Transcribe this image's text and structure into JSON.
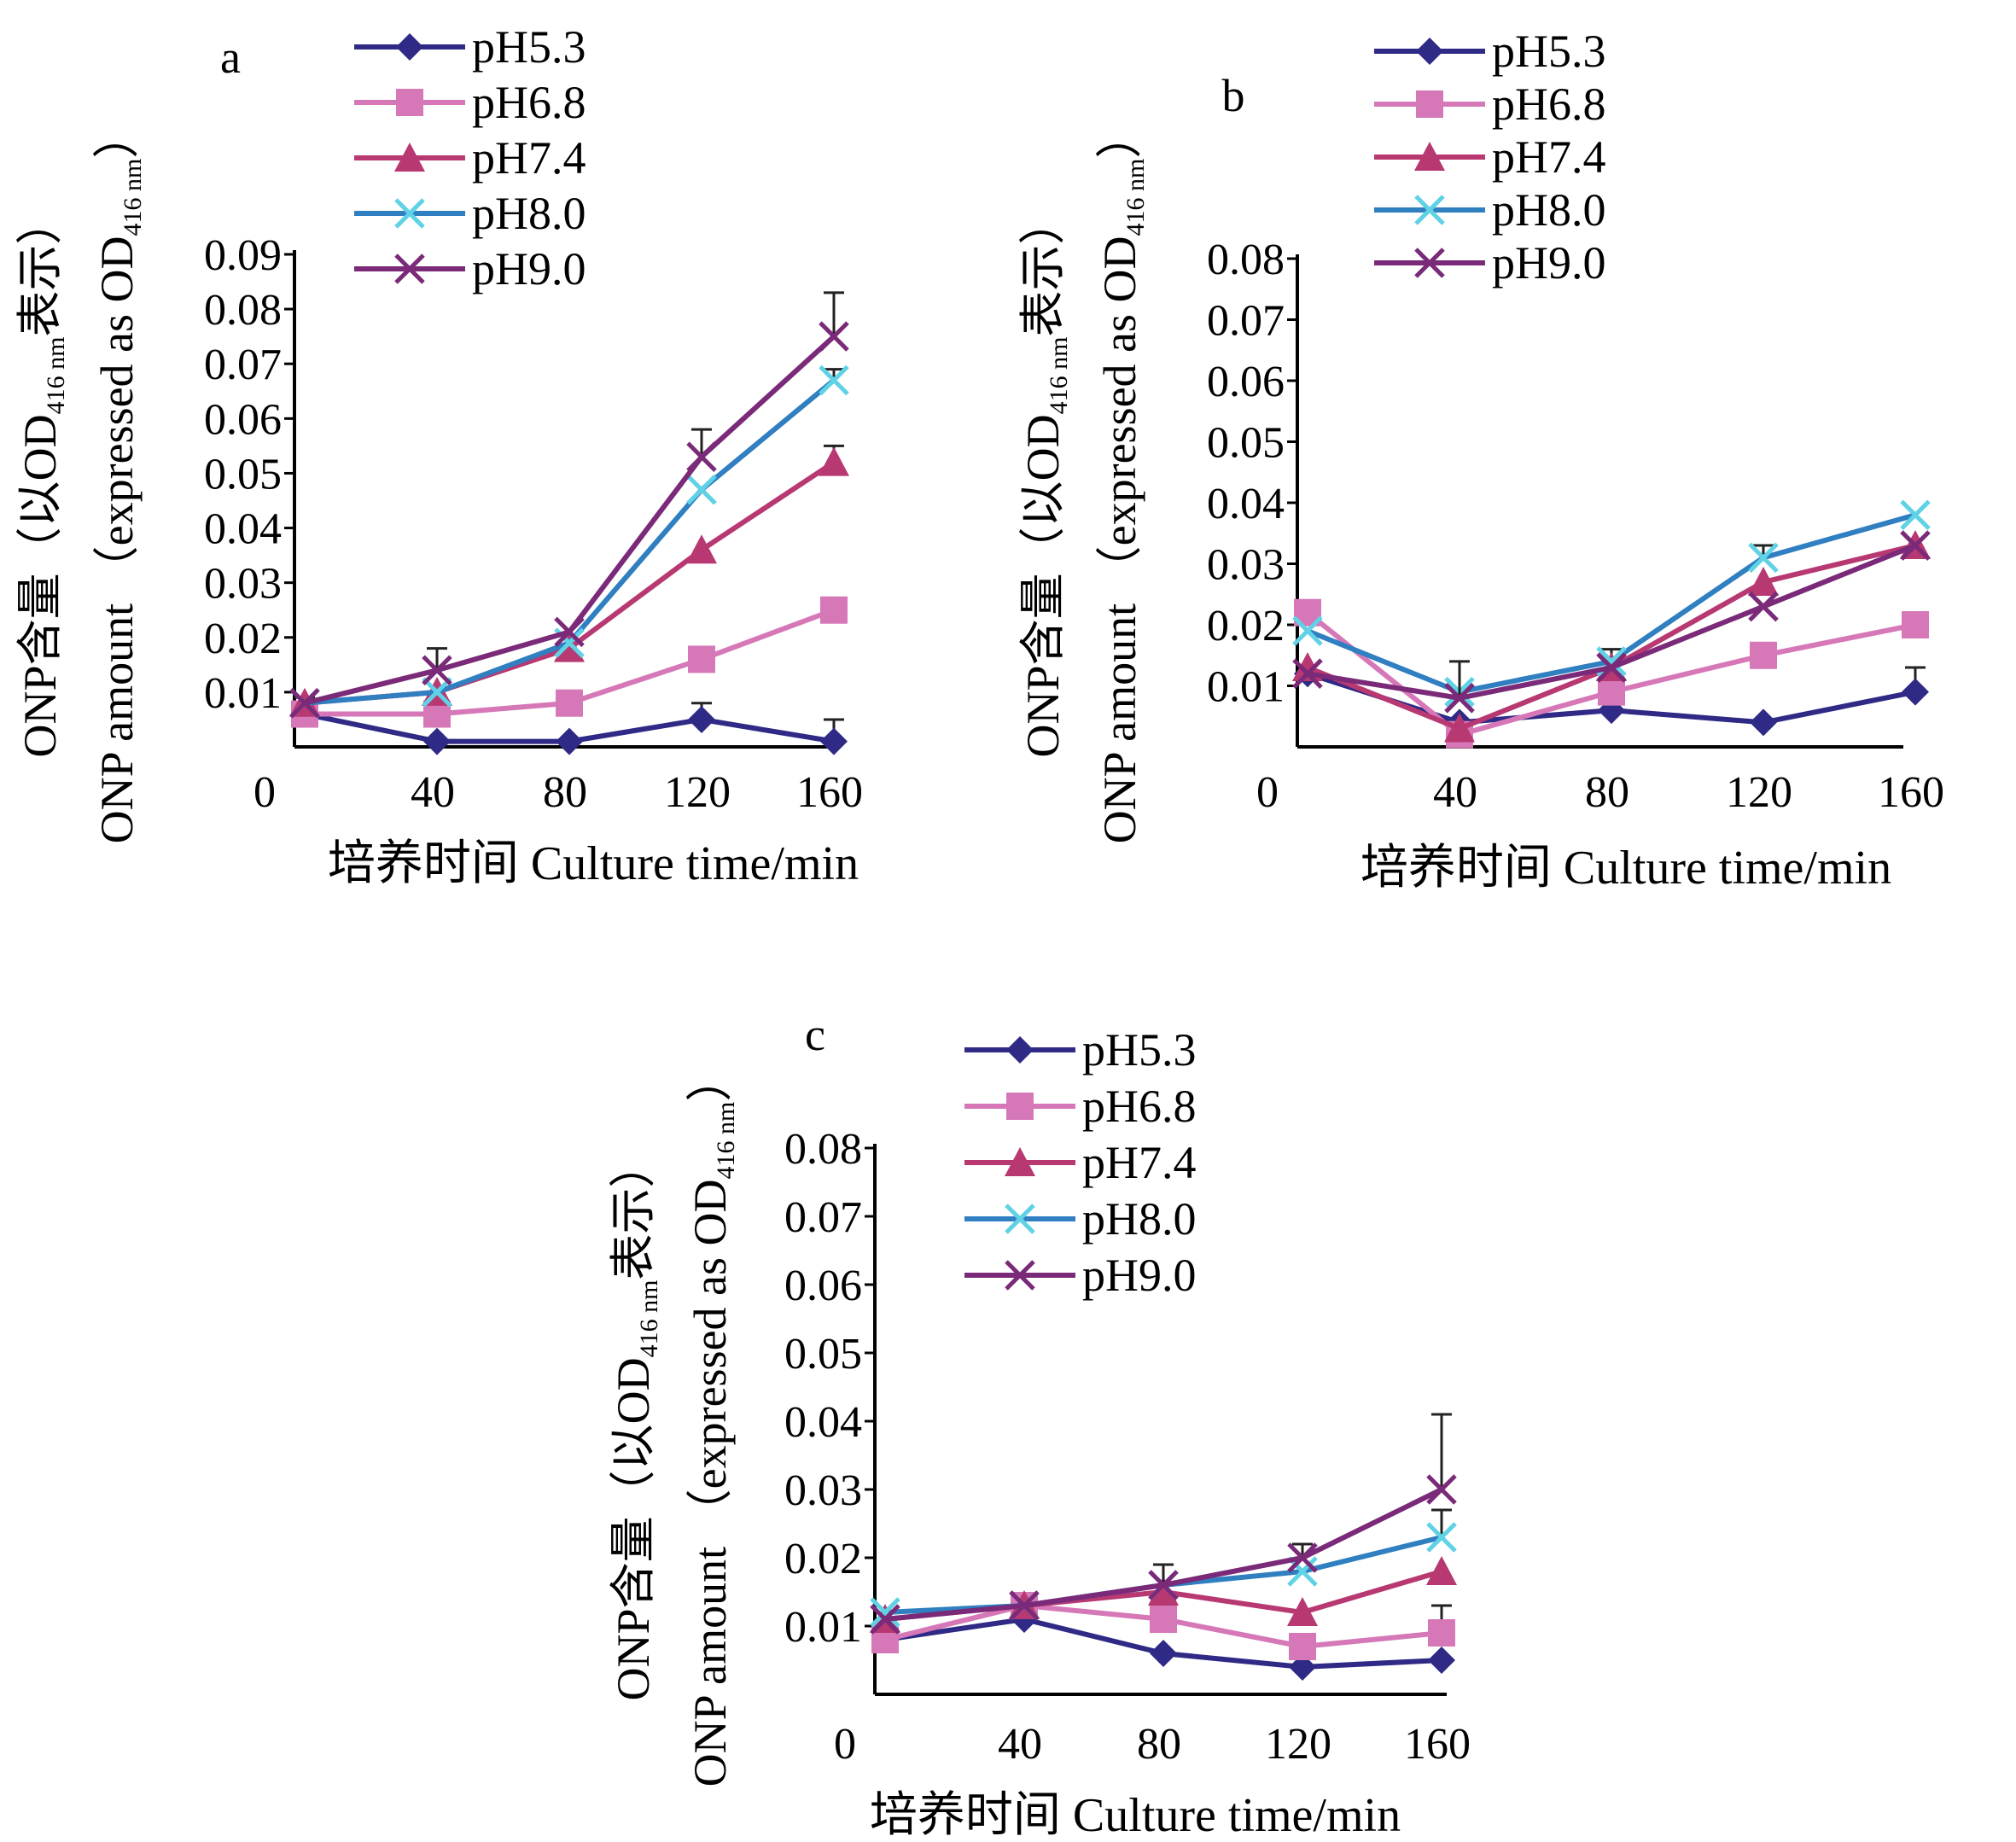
{
  "figure": {
    "y_label_cn": "ONP含量（以OD",
    "y_label_cn_sub": "416 nm",
    "y_label_cn_end": "表示）",
    "y_label_en": "ONP amount （expressed as OD",
    "y_label_en_sub": "416 nm",
    "y_label_en_end": "）",
    "x_label": "培养时间 Culture time/min"
  },
  "series_colors": {
    "pH5.3": "#2e2a85",
    "pH6.8": "#d678b8",
    "pH7.4": "#b83872",
    "pH8.0": "#2f7fc1",
    "pH9.0": "#7a2a78"
  },
  "series_markers": {
    "pH5.3": "diamond",
    "pH6.8": "square",
    "pH7.4": "triangle",
    "pH8.0": "star-x",
    "pH9.0": "x"
  },
  "chart_data": [
    {
      "type": "line",
      "panel_label": "a",
      "x": [
        0,
        40,
        80,
        120,
        160
      ],
      "x_ticks": [
        "0",
        "40",
        "80",
        "120",
        "160"
      ],
      "y_ticks": [
        "0.01",
        "0.02",
        "0.03",
        "0.04",
        "0.05",
        "0.06",
        "0.07",
        "0.08",
        "0.09"
      ],
      "ylim": [
        0,
        0.09
      ],
      "xlabel": "培养时间 Culture time/min",
      "legend_position": "top-left",
      "series": [
        {
          "name": "pH5.3",
          "values": [
            0.006,
            0.001,
            0.001,
            0.005,
            0.001
          ],
          "errors": [
            0.003,
            0.0,
            0.0,
            0.003,
            0.004
          ]
        },
        {
          "name": "pH6.8",
          "values": [
            0.006,
            0.006,
            0.008,
            0.016,
            0.025
          ],
          "errors": [
            0.0,
            0.0,
            0.0,
            0.0,
            0.0
          ]
        },
        {
          "name": "pH7.4",
          "values": [
            0.008,
            0.01,
            0.018,
            0.036,
            0.052
          ],
          "errors": [
            0.0,
            0.0,
            0.0,
            0.0,
            0.003
          ]
        },
        {
          "name": "pH8.0",
          "values": [
            0.008,
            0.01,
            0.019,
            0.047,
            0.067
          ],
          "errors": [
            0.0,
            0.0,
            0.0,
            0.0,
            0.002
          ]
        },
        {
          "name": "pH9.0",
          "values": [
            0.008,
            0.014,
            0.021,
            0.053,
            0.075
          ],
          "errors": [
            0.0,
            0.004,
            0.0,
            0.005,
            0.008
          ]
        }
      ]
    },
    {
      "type": "line",
      "panel_label": "b",
      "x": [
        0,
        40,
        80,
        120,
        160
      ],
      "x_ticks": [
        "0",
        "40",
        "80",
        "120",
        "160"
      ],
      "y_ticks": [
        "0.01",
        "0.02",
        "0.03",
        "0.04",
        "0.05",
        "0.06",
        "0.07",
        "0.08"
      ],
      "ylim": [
        0,
        0.08
      ],
      "xlabel": "培养时间 Culture time/min",
      "legend_position": "top-right",
      "series": [
        {
          "name": "pH5.3",
          "values": [
            0.012,
            0.004,
            0.006,
            0.004,
            0.009
          ],
          "errors": [
            0.0,
            0.0,
            0.0,
            0.0,
            0.004
          ]
        },
        {
          "name": "pH6.8",
          "values": [
            0.022,
            0.002,
            0.009,
            0.015,
            0.02
          ],
          "errors": [
            0.0,
            0.0,
            0.0,
            0.002,
            0.0
          ]
        },
        {
          "name": "pH7.4",
          "values": [
            0.013,
            0.003,
            0.013,
            0.027,
            0.033
          ],
          "errors": [
            0.0,
            0.0,
            0.003,
            0.0,
            0.0
          ]
        },
        {
          "name": "pH8.0",
          "values": [
            0.019,
            0.009,
            0.014,
            0.031,
            0.038
          ],
          "errors": [
            0.0,
            0.0,
            0.0,
            0.002,
            0.0
          ]
        },
        {
          "name": "pH9.0",
          "values": [
            0.012,
            0.008,
            0.013,
            0.023,
            0.033
          ],
          "errors": [
            0.0,
            0.006,
            0.0,
            0.0,
            0.0
          ]
        }
      ]
    },
    {
      "type": "line",
      "panel_label": "c",
      "x": [
        0,
        40,
        80,
        120,
        160
      ],
      "x_ticks": [
        "0",
        "40",
        "80",
        "120",
        "160"
      ],
      "y_ticks": [
        "0.01",
        "0.02",
        "0.03",
        "0.04",
        "0.05",
        "0.06",
        "0.07",
        "0.08"
      ],
      "ylim": [
        0,
        0.08
      ],
      "xlabel": "培养时间 Culture time/min",
      "legend_position": "top-center",
      "series": [
        {
          "name": "pH5.3",
          "values": [
            0.008,
            0.011,
            0.006,
            0.004,
            0.005
          ],
          "errors": [
            0.0,
            0.0,
            0.0,
            0.0,
            0.0
          ]
        },
        {
          "name": "pH6.8",
          "values": [
            0.008,
            0.013,
            0.011,
            0.007,
            0.009
          ],
          "errors": [
            0.0,
            0.0,
            0.0,
            0.0,
            0.004
          ]
        },
        {
          "name": "pH7.4",
          "values": [
            0.011,
            0.013,
            0.015,
            0.012,
            0.018
          ],
          "errors": [
            0.0,
            0.0,
            0.0,
            0.0,
            0.0
          ]
        },
        {
          "name": "pH8.0",
          "values": [
            0.012,
            0.013,
            0.016,
            0.018,
            0.023
          ],
          "errors": [
            0.0,
            0.0,
            0.0,
            0.0,
            0.004
          ]
        },
        {
          "name": "pH9.0",
          "values": [
            0.011,
            0.013,
            0.016,
            0.02,
            0.03
          ],
          "errors": [
            0.0,
            0.0,
            0.003,
            0.002,
            0.011
          ]
        }
      ]
    }
  ]
}
